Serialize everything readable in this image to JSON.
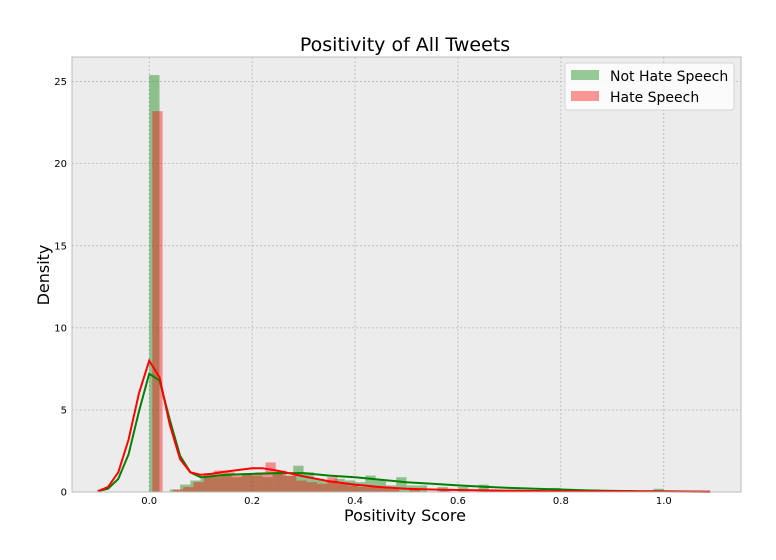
{
  "chart_data": {
    "type": "bar",
    "title": "Positivity of All Tweets",
    "xlabel": "Positivity Score",
    "ylabel": "Density",
    "xlim": [
      -0.15,
      1.15
    ],
    "ylim": [
      0,
      26.5
    ],
    "xticks": [
      0.0,
      0.2,
      0.4,
      0.6,
      0.8,
      1.0
    ],
    "xtick_labels": [
      "0.0",
      "0.2",
      "0.4",
      "0.6",
      "0.8",
      "1.0"
    ],
    "yticks": [
      0,
      5,
      10,
      15,
      20,
      25
    ],
    "ytick_labels": [
      "0",
      "5",
      "10",
      "15",
      "20",
      "25"
    ],
    "grid": true,
    "legend_position": "top-right",
    "bin_width": 0.02,
    "series": [
      {
        "name": "Not Hate Speech",
        "color": "#008000",
        "hist": [
          [
            0.0,
            25.4
          ],
          [
            0.04,
            0.15
          ],
          [
            0.06,
            0.45
          ],
          [
            0.08,
            0.7
          ],
          [
            0.1,
            0.9
          ],
          [
            0.12,
            0.9
          ],
          [
            0.14,
            1.0
          ],
          [
            0.16,
            0.9
          ],
          [
            0.18,
            1.1
          ],
          [
            0.2,
            1.0
          ],
          [
            0.22,
            0.9
          ],
          [
            0.24,
            1.2
          ],
          [
            0.26,
            1.0
          ],
          [
            0.28,
            1.6
          ],
          [
            0.3,
            1.2
          ],
          [
            0.32,
            0.8
          ],
          [
            0.34,
            0.7
          ],
          [
            0.36,
            0.8
          ],
          [
            0.38,
            0.7
          ],
          [
            0.4,
            0.6
          ],
          [
            0.42,
            1.0
          ],
          [
            0.44,
            0.7
          ],
          [
            0.46,
            0.4
          ],
          [
            0.48,
            0.9
          ],
          [
            0.5,
            0.4
          ],
          [
            0.52,
            0.4
          ],
          [
            0.56,
            0.3
          ],
          [
            0.6,
            0.3
          ],
          [
            0.64,
            0.45
          ],
          [
            0.7,
            0.15
          ],
          [
            0.78,
            0.25
          ],
          [
            0.98,
            0.2
          ]
        ],
        "kde": [
          [
            -0.1,
            0.05
          ],
          [
            -0.08,
            0.2
          ],
          [
            -0.06,
            0.8
          ],
          [
            -0.04,
            2.3
          ],
          [
            -0.02,
            4.9
          ],
          [
            0.0,
            7.2
          ],
          [
            0.02,
            6.8
          ],
          [
            0.04,
            4.4
          ],
          [
            0.06,
            2.2
          ],
          [
            0.08,
            1.2
          ],
          [
            0.1,
            0.9
          ],
          [
            0.12,
            0.95
          ],
          [
            0.15,
            1.05
          ],
          [
            0.2,
            1.1
          ],
          [
            0.25,
            1.15
          ],
          [
            0.3,
            1.15
          ],
          [
            0.35,
            1.0
          ],
          [
            0.4,
            0.9
          ],
          [
            0.45,
            0.75
          ],
          [
            0.5,
            0.6
          ],
          [
            0.55,
            0.5
          ],
          [
            0.6,
            0.4
          ],
          [
            0.65,
            0.32
          ],
          [
            0.7,
            0.25
          ],
          [
            0.75,
            0.2
          ],
          [
            0.8,
            0.15
          ],
          [
            0.85,
            0.1
          ],
          [
            0.9,
            0.07
          ],
          [
            0.95,
            0.05
          ],
          [
            1.0,
            0.05
          ],
          [
            1.05,
            0.03
          ],
          [
            1.09,
            0.02
          ]
        ]
      },
      {
        "name": "Hate Speech",
        "color": "#ff0000",
        "hist": [
          [
            0.0,
            23.2
          ],
          [
            0.04,
            0.15
          ],
          [
            0.06,
            0.3
          ],
          [
            0.08,
            0.6
          ],
          [
            0.1,
            1.1
          ],
          [
            0.12,
            1.3
          ],
          [
            0.14,
            1.2
          ],
          [
            0.16,
            1.0
          ],
          [
            0.18,
            1.1
          ],
          [
            0.2,
            1.2
          ],
          [
            0.22,
            1.8
          ],
          [
            0.24,
            1.3
          ],
          [
            0.26,
            1.0
          ],
          [
            0.28,
            0.7
          ],
          [
            0.3,
            0.6
          ],
          [
            0.32,
            0.5
          ],
          [
            0.34,
            0.9
          ],
          [
            0.36,
            0.5
          ],
          [
            0.38,
            0.4
          ],
          [
            0.4,
            0.3
          ],
          [
            0.42,
            0.3
          ],
          [
            0.44,
            0.25
          ],
          [
            0.46,
            0.2
          ],
          [
            0.5,
            0.15
          ],
          [
            0.56,
            0.1
          ],
          [
            0.64,
            0.1
          ],
          [
            0.78,
            0.05
          ]
        ],
        "kde": [
          [
            -0.1,
            0.05
          ],
          [
            -0.08,
            0.3
          ],
          [
            -0.06,
            1.2
          ],
          [
            -0.04,
            3.2
          ],
          [
            -0.02,
            6.0
          ],
          [
            0.0,
            8.0
          ],
          [
            0.02,
            7.0
          ],
          [
            0.04,
            4.1
          ],
          [
            0.06,
            2.0
          ],
          [
            0.08,
            1.2
          ],
          [
            0.1,
            1.05
          ],
          [
            0.12,
            1.1
          ],
          [
            0.15,
            1.25
          ],
          [
            0.2,
            1.45
          ],
          [
            0.22,
            1.45
          ],
          [
            0.25,
            1.3
          ],
          [
            0.3,
            0.95
          ],
          [
            0.35,
            0.65
          ],
          [
            0.4,
            0.45
          ],
          [
            0.45,
            0.3
          ],
          [
            0.5,
            0.2
          ],
          [
            0.55,
            0.15
          ],
          [
            0.6,
            0.12
          ],
          [
            0.7,
            0.08
          ],
          [
            0.8,
            0.05
          ],
          [
            0.9,
            0.04
          ],
          [
            1.0,
            0.03
          ],
          [
            1.09,
            0.02
          ]
        ]
      }
    ]
  }
}
